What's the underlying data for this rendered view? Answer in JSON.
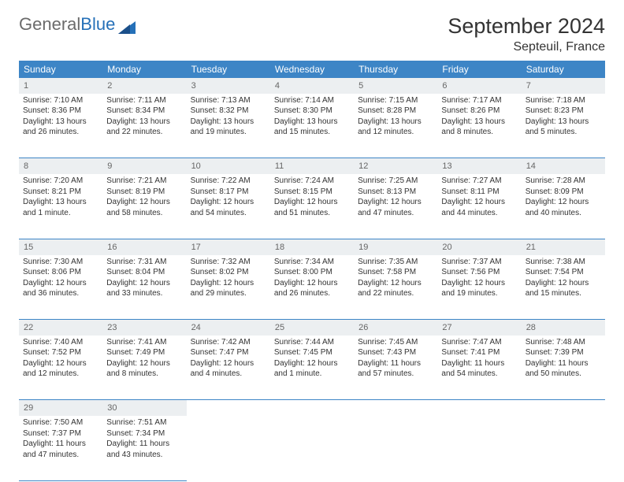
{
  "logo": {
    "part1": "General",
    "part2": "Blue"
  },
  "title": "September 2024",
  "location": "Septeuil, France",
  "columns": [
    "Sunday",
    "Monday",
    "Tuesday",
    "Wednesday",
    "Thursday",
    "Friday",
    "Saturday"
  ],
  "header_bg": "#3d85c6",
  "daynum_bg": "#eceff1",
  "weeks": [
    [
      {
        "n": "1",
        "sunrise": "7:10 AM",
        "sunset": "8:36 PM",
        "daylight": "13 hours and 26 minutes."
      },
      {
        "n": "2",
        "sunrise": "7:11 AM",
        "sunset": "8:34 PM",
        "daylight": "13 hours and 22 minutes."
      },
      {
        "n": "3",
        "sunrise": "7:13 AM",
        "sunset": "8:32 PM",
        "daylight": "13 hours and 19 minutes."
      },
      {
        "n": "4",
        "sunrise": "7:14 AM",
        "sunset": "8:30 PM",
        "daylight": "13 hours and 15 minutes."
      },
      {
        "n": "5",
        "sunrise": "7:15 AM",
        "sunset": "8:28 PM",
        "daylight": "13 hours and 12 minutes."
      },
      {
        "n": "6",
        "sunrise": "7:17 AM",
        "sunset": "8:26 PM",
        "daylight": "13 hours and 8 minutes."
      },
      {
        "n": "7",
        "sunrise": "7:18 AM",
        "sunset": "8:23 PM",
        "daylight": "13 hours and 5 minutes."
      }
    ],
    [
      {
        "n": "8",
        "sunrise": "7:20 AM",
        "sunset": "8:21 PM",
        "daylight": "13 hours and 1 minute."
      },
      {
        "n": "9",
        "sunrise": "7:21 AM",
        "sunset": "8:19 PM",
        "daylight": "12 hours and 58 minutes."
      },
      {
        "n": "10",
        "sunrise": "7:22 AM",
        "sunset": "8:17 PM",
        "daylight": "12 hours and 54 minutes."
      },
      {
        "n": "11",
        "sunrise": "7:24 AM",
        "sunset": "8:15 PM",
        "daylight": "12 hours and 51 minutes."
      },
      {
        "n": "12",
        "sunrise": "7:25 AM",
        "sunset": "8:13 PM",
        "daylight": "12 hours and 47 minutes."
      },
      {
        "n": "13",
        "sunrise": "7:27 AM",
        "sunset": "8:11 PM",
        "daylight": "12 hours and 44 minutes."
      },
      {
        "n": "14",
        "sunrise": "7:28 AM",
        "sunset": "8:09 PM",
        "daylight": "12 hours and 40 minutes."
      }
    ],
    [
      {
        "n": "15",
        "sunrise": "7:30 AM",
        "sunset": "8:06 PM",
        "daylight": "12 hours and 36 minutes."
      },
      {
        "n": "16",
        "sunrise": "7:31 AM",
        "sunset": "8:04 PM",
        "daylight": "12 hours and 33 minutes."
      },
      {
        "n": "17",
        "sunrise": "7:32 AM",
        "sunset": "8:02 PM",
        "daylight": "12 hours and 29 minutes."
      },
      {
        "n": "18",
        "sunrise": "7:34 AM",
        "sunset": "8:00 PM",
        "daylight": "12 hours and 26 minutes."
      },
      {
        "n": "19",
        "sunrise": "7:35 AM",
        "sunset": "7:58 PM",
        "daylight": "12 hours and 22 minutes."
      },
      {
        "n": "20",
        "sunrise": "7:37 AM",
        "sunset": "7:56 PM",
        "daylight": "12 hours and 19 minutes."
      },
      {
        "n": "21",
        "sunrise": "7:38 AM",
        "sunset": "7:54 PM",
        "daylight": "12 hours and 15 minutes."
      }
    ],
    [
      {
        "n": "22",
        "sunrise": "7:40 AM",
        "sunset": "7:52 PM",
        "daylight": "12 hours and 12 minutes."
      },
      {
        "n": "23",
        "sunrise": "7:41 AM",
        "sunset": "7:49 PM",
        "daylight": "12 hours and 8 minutes."
      },
      {
        "n": "24",
        "sunrise": "7:42 AM",
        "sunset": "7:47 PM",
        "daylight": "12 hours and 4 minutes."
      },
      {
        "n": "25",
        "sunrise": "7:44 AM",
        "sunset": "7:45 PM",
        "daylight": "12 hours and 1 minute."
      },
      {
        "n": "26",
        "sunrise": "7:45 AM",
        "sunset": "7:43 PM",
        "daylight": "11 hours and 57 minutes."
      },
      {
        "n": "27",
        "sunrise": "7:47 AM",
        "sunset": "7:41 PM",
        "daylight": "11 hours and 54 minutes."
      },
      {
        "n": "28",
        "sunrise": "7:48 AM",
        "sunset": "7:39 PM",
        "daylight": "11 hours and 50 minutes."
      }
    ],
    [
      {
        "n": "29",
        "sunrise": "7:50 AM",
        "sunset": "7:37 PM",
        "daylight": "11 hours and 47 minutes."
      },
      {
        "n": "30",
        "sunrise": "7:51 AM",
        "sunset": "7:34 PM",
        "daylight": "11 hours and 43 minutes."
      },
      null,
      null,
      null,
      null,
      null
    ]
  ],
  "labels": {
    "sunrise": "Sunrise: ",
    "sunset": "Sunset: ",
    "daylight": "Daylight: "
  }
}
